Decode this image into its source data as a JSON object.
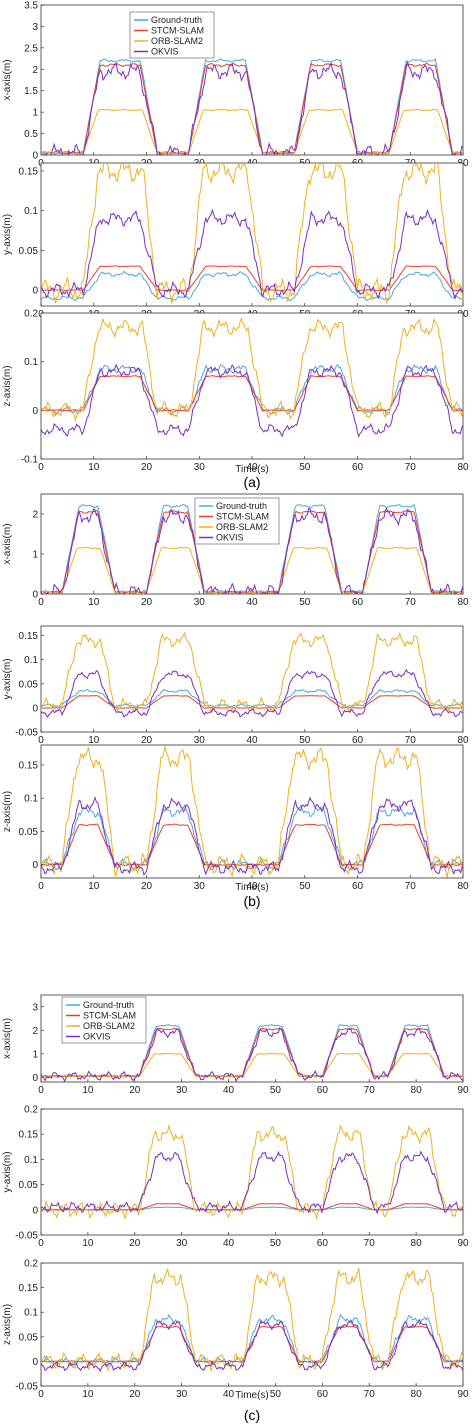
{
  "series_names": [
    "Ground-truth",
    "STCM-SLAM",
    "ORB-SLAM2",
    "OKVIS"
  ],
  "colors": {
    "Ground-truth": "#4aa8e0",
    "STCM-SLAM": "#e8402a",
    "ORB-SLAM2": "#f0b020",
    "OKVIS": "#7b2fbe"
  },
  "chart_data": [
    {
      "group": "(a)",
      "type": "line",
      "xlabel": "Time(s)",
      "xlim": [
        0,
        80
      ],
      "xticks": [
        0,
        10,
        20,
        30,
        40,
        50,
        60,
        70,
        80
      ],
      "legend": "top-left",
      "pulses": [
        [
          8,
          22
        ],
        [
          28,
          42
        ],
        [
          48,
          60
        ],
        [
          66,
          78
        ]
      ],
      "subplots": [
        {
          "ylabel": "x-axis(m)",
          "ylim": [
            0,
            3.5
          ],
          "yticks": [
            "0",
            "0.5",
            "1",
            "1.5",
            "2",
            "2.5",
            "3",
            "3.5"
          ],
          "baseline": {
            "Ground-truth": 0.05,
            "STCM-SLAM": 0.05,
            "ORB-SLAM2": 0.05,
            "OKVIS": 0.05
          },
          "peak": {
            "Ground-truth": 2.2,
            "STCM-SLAM": 2.1,
            "ORB-SLAM2": 1.05,
            "OKVIS": 1.95
          }
        },
        {
          "ylabel": "y-axis(m)",
          "ylim": [
            -0.02,
            0.16
          ],
          "yticks": [
            "0",
            "0.05",
            "0.1",
            "0.15"
          ],
          "baseline": {
            "Ground-truth": -0.01,
            "STCM-SLAM": 0.0,
            "ORB-SLAM2": 0.0,
            "OKVIS": 0.0
          },
          "peak": {
            "Ground-truth": 0.02,
            "STCM-SLAM": 0.03,
            "ORB-SLAM2": 0.15,
            "OKVIS": 0.09
          }
        },
        {
          "ylabel": "z-axis(m)",
          "ylim": [
            -0.1,
            0.2
          ],
          "yticks": [
            "-0.1",
            "0",
            "0.1",
            "0.2"
          ],
          "baseline": {
            "Ground-truth": 0.0,
            "STCM-SLAM": 0.0,
            "ORB-SLAM2": 0.0,
            "OKVIS": -0.04
          },
          "peak": {
            "Ground-truth": 0.085,
            "STCM-SLAM": 0.07,
            "ORB-SLAM2": 0.17,
            "OKVIS": 0.08
          }
        }
      ]
    },
    {
      "group": "(b)",
      "type": "line",
      "xlabel": "Time(s)",
      "xlim": [
        0,
        80
      ],
      "xticks": [
        0,
        10,
        20,
        30,
        40,
        50,
        60,
        70,
        80
      ],
      "legend": "top-center",
      "pulses": [
        [
          4,
          14
        ],
        [
          20,
          31
        ],
        [
          45,
          57
        ],
        [
          61,
          74
        ]
      ],
      "subplots": [
        {
          "ylabel": "x-axis(m)",
          "ylim": [
            0,
            2.5
          ],
          "yticks": [
            "0",
            "1",
            "2"
          ],
          "baseline": {
            "Ground-truth": 0.05,
            "STCM-SLAM": 0.05,
            "ORB-SLAM2": 0.05,
            "OKVIS": 0.05
          },
          "peak": {
            "Ground-truth": 2.2,
            "STCM-SLAM": 2.05,
            "ORB-SLAM2": 1.15,
            "OKVIS": 1.95
          }
        },
        {
          "ylabel": "y-axis(m)",
          "ylim": [
            -0.05,
            0.17
          ],
          "yticks": [
            "-0.05",
            "0",
            "0.05",
            "0.1",
            "0.15"
          ],
          "baseline": {
            "Ground-truth": 0.005,
            "STCM-SLAM": 0.0,
            "ORB-SLAM2": 0.005,
            "OKVIS": -0.01
          },
          "peak": {
            "Ground-truth": 0.035,
            "STCM-SLAM": 0.025,
            "ORB-SLAM2": 0.14,
            "OKVIS": 0.07
          }
        },
        {
          "ylabel": "z-axis(m)",
          "ylim": [
            -0.02,
            0.18
          ],
          "yticks": [
            "0",
            "0.05",
            "0.1",
            "0.15"
          ],
          "baseline": {
            "Ground-truth": 0.0,
            "STCM-SLAM": 0.0,
            "ORB-SLAM2": 0.0,
            "OKVIS": -0.005
          },
          "peak": {
            "Ground-truth": 0.08,
            "STCM-SLAM": 0.06,
            "ORB-SLAM2": 0.16,
            "OKVIS": 0.09
          }
        }
      ]
    },
    {
      "group": "(c)",
      "type": "line",
      "xlabel": "Time(s)",
      "xlim": [
        0,
        90
      ],
      "xticks": [
        0,
        10,
        20,
        30,
        40,
        50,
        60,
        70,
        80,
        90
      ],
      "legend": "top-left",
      "pulses": [
        [
          21,
          33
        ],
        [
          43,
          55
        ],
        [
          60,
          71
        ],
        [
          74,
          86
        ]
      ],
      "subplots": [
        {
          "ylabel": "x-axis(m)",
          "ylim": [
            -0.2,
            3.5
          ],
          "yticks": [
            "0",
            "1",
            "2",
            "3"
          ],
          "baseline": {
            "Ground-truth": 0.05,
            "STCM-SLAM": 0.05,
            "ORB-SLAM2": 0.05,
            "OKVIS": 0.05
          },
          "peak": {
            "Ground-truth": 2.2,
            "STCM-SLAM": 2.05,
            "ORB-SLAM2": 1.0,
            "OKVIS": 1.9
          }
        },
        {
          "ylabel": "y-axis(m)",
          "ylim": [
            -0.05,
            0.2
          ],
          "yticks": [
            "-0.05",
            "0",
            "0.05",
            "0.1",
            "0.15",
            "0.2"
          ],
          "baseline": {
            "Ground-truth": 0.0,
            "STCM-SLAM": 0.0,
            "ORB-SLAM2": 0.0,
            "OKVIS": 0.005
          },
          "peak": {
            "Ground-truth": 0.005,
            "STCM-SLAM": 0.012,
            "ORB-SLAM2": 0.15,
            "OKVIS": 0.105
          }
        },
        {
          "ylabel": "z-axis(m)",
          "ylim": [
            -0.05,
            0.2
          ],
          "yticks": [
            "-0.05",
            "0",
            "0.05",
            "0.1",
            "0.15",
            "0.2"
          ],
          "baseline": {
            "Ground-truth": 0.0,
            "STCM-SLAM": 0.0,
            "ORB-SLAM2": 0.0,
            "OKVIS": -0.01
          },
          "peak": {
            "Ground-truth": 0.085,
            "STCM-SLAM": 0.07,
            "ORB-SLAM2": 0.17,
            "OKVIS": 0.075
          }
        }
      ]
    }
  ]
}
